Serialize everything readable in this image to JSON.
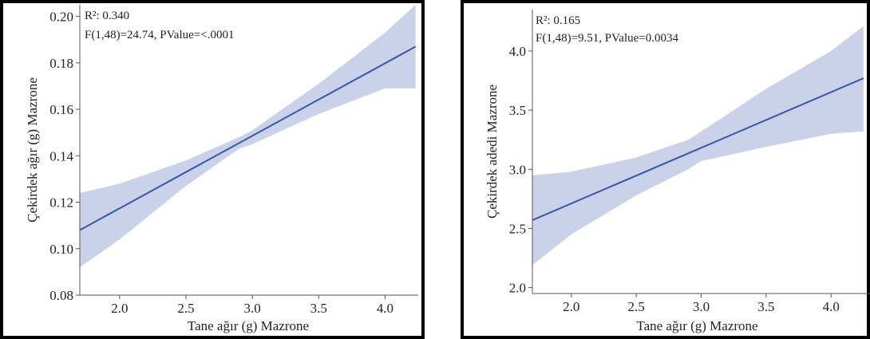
{
  "colors": {
    "line": "#3a57a7",
    "band": "#c9d2e8",
    "frame": "#000000",
    "axis": "#555555"
  },
  "chart_data": [
    {
      "type": "line",
      "title": "",
      "xlabel": "Tane ağır (g) Mazrone",
      "ylabel": "Çekirdek ağır (g) Mazrone",
      "xlim": [
        1.7,
        4.25
      ],
      "ylim": [
        0.08,
        0.205
      ],
      "xticks": [
        "2.0",
        "2.5",
        "3.0",
        "3.5",
        "4.0"
      ],
      "yticks": [
        "0.08",
        "0.10",
        "0.12",
        "0.14",
        "0.16",
        "0.18",
        "0.20"
      ],
      "annotations": [
        "R²: 0.340",
        "F(1,48)=24.74, PValue=<.0001"
      ],
      "series": [
        {
          "x": [
            1.7,
            4.23
          ],
          "y": [
            0.108,
            0.187
          ]
        }
      ],
      "confidence_band": {
        "x": [
          1.7,
          2.0,
          2.5,
          2.9,
          3.0,
          3.5,
          4.0,
          4.23
        ],
        "upper": [
          0.124,
          0.128,
          0.138,
          0.148,
          0.151,
          0.171,
          0.193,
          0.205
        ],
        "lower": [
          0.092,
          0.104,
          0.127,
          0.143,
          0.145,
          0.158,
          0.169,
          0.169
        ]
      }
    },
    {
      "type": "line",
      "title": "",
      "xlabel": "Tane ağır (g) Mazrone",
      "ylabel": "Çekirdek adedi Mazrone",
      "xlim": [
        1.7,
        4.3
      ],
      "ylim": [
        1.95,
        4.35
      ],
      "xticks": [
        "2.0",
        "2.5",
        "3.0",
        "3.5",
        "4.0"
      ],
      "yticks": [
        "2.0",
        "2.5",
        "3.0",
        "3.5",
        "4.0"
      ],
      "annotations": [
        "R²: 0.165",
        "F(1,48)=9.51, PValue=0.0034"
      ],
      "series": [
        {
          "x": [
            1.7,
            4.25
          ],
          "y": [
            2.57,
            3.77
          ]
        }
      ],
      "confidence_band": {
        "x": [
          1.7,
          2.0,
          2.5,
          2.9,
          3.0,
          3.5,
          4.0,
          4.25
        ],
        "upper": [
          2.95,
          2.98,
          3.1,
          3.25,
          3.32,
          3.68,
          4.0,
          4.21
        ],
        "lower": [
          2.19,
          2.45,
          2.78,
          3.0,
          3.07,
          3.19,
          3.3,
          3.32
        ]
      }
    }
  ]
}
